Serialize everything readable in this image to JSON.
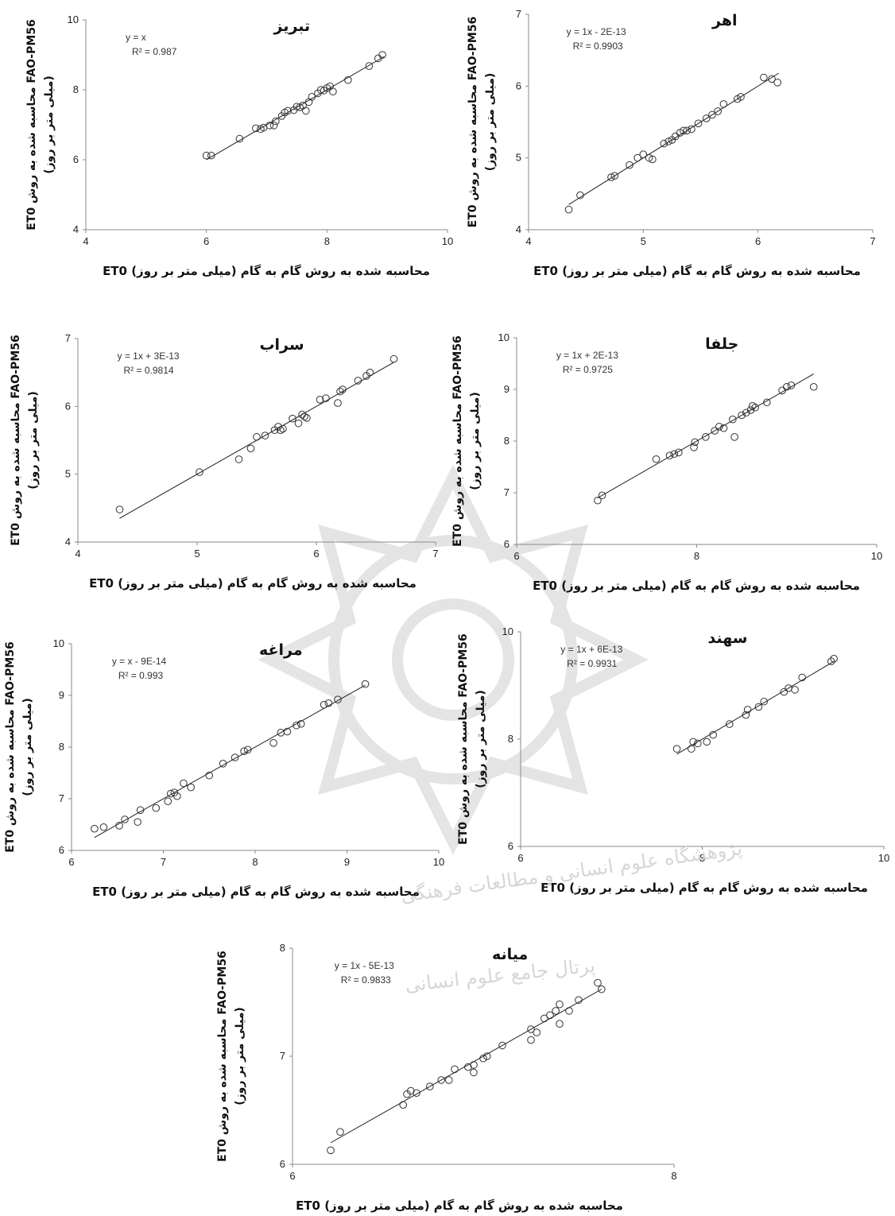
{
  "common": {
    "xlabel": "ET0 محاسبه شده به روش گام به گام (میلی متر بر روز)",
    "ylabel_line1": "ET0 محاسبه شده به روش FAO-PM56",
    "ylabel_line2": "(میلی متر بر روز)"
  },
  "watermark": {
    "arc_text": "پژوهشگاه علوم انسانی و مطالعات فرهنگی",
    "arc_text2": "پرتال جامع علوم انسانی"
  },
  "chart_data": [
    {
      "type": "scatter",
      "title": "تبریز",
      "equation": "y = x",
      "r2": "R² = 0.987",
      "xlim": [
        4,
        10
      ],
      "ylim": [
        4,
        10
      ],
      "xticks": [
        "4",
        "6",
        "8",
        "10"
      ],
      "yticks": [
        "4",
        "6",
        "8",
        "10"
      ],
      "trend": {
        "slope": 1,
        "intercept": 0,
        "x": [
          6.0,
          8.95
        ]
      },
      "points": [
        [
          6.0,
          6.12
        ],
        [
          6.08,
          6.12
        ],
        [
          6.55,
          6.6
        ],
        [
          6.82,
          6.9
        ],
        [
          6.9,
          6.88
        ],
        [
          6.95,
          6.92
        ],
        [
          7.05,
          6.98
        ],
        [
          7.12,
          6.98
        ],
        [
          7.15,
          7.1
        ],
        [
          7.25,
          7.25
        ],
        [
          7.3,
          7.35
        ],
        [
          7.35,
          7.4
        ],
        [
          7.45,
          7.42
        ],
        [
          7.5,
          7.52
        ],
        [
          7.55,
          7.5
        ],
        [
          7.6,
          7.55
        ],
        [
          7.65,
          7.4
        ],
        [
          7.7,
          7.65
        ],
        [
          7.75,
          7.8
        ],
        [
          7.85,
          7.9
        ],
        [
          7.9,
          8.0
        ],
        [
          7.95,
          7.98
        ],
        [
          8.0,
          8.05
        ],
        [
          8.05,
          8.1
        ],
        [
          8.1,
          7.95
        ],
        [
          8.35,
          8.28
        ],
        [
          8.7,
          8.68
        ],
        [
          8.85,
          8.9
        ],
        [
          8.92,
          9.0
        ]
      ]
    },
    {
      "type": "scatter",
      "title": "اهر",
      "equation": "y = 1x - 2E-13",
      "r2": "R² = 0.9903",
      "xlim": [
        4,
        7
      ],
      "ylim": [
        4,
        7
      ],
      "xticks": [
        "4",
        "5",
        "6",
        "7"
      ],
      "yticks": [
        "4",
        "5",
        "6",
        "7"
      ],
      "trend": {
        "slope": 1,
        "intercept": 0,
        "x": [
          4.35,
          6.18
        ]
      },
      "points": [
        [
          4.35,
          4.28
        ],
        [
          4.45,
          4.48
        ],
        [
          4.72,
          4.73
        ],
        [
          4.75,
          4.75
        ],
        [
          4.88,
          4.9
        ],
        [
          4.95,
          5.0
        ],
        [
          5.0,
          5.05
        ],
        [
          5.05,
          5.0
        ],
        [
          5.08,
          4.98
        ],
        [
          5.18,
          5.2
        ],
        [
          5.22,
          5.23
        ],
        [
          5.25,
          5.25
        ],
        [
          5.28,
          5.3
        ],
        [
          5.32,
          5.35
        ],
        [
          5.35,
          5.38
        ],
        [
          5.38,
          5.38
        ],
        [
          5.42,
          5.4
        ],
        [
          5.48,
          5.48
        ],
        [
          5.55,
          5.55
        ],
        [
          5.6,
          5.6
        ],
        [
          5.65,
          5.65
        ],
        [
          5.7,
          5.75
        ],
        [
          5.82,
          5.82
        ],
        [
          5.85,
          5.85
        ],
        [
          6.05,
          6.12
        ],
        [
          6.12,
          6.1
        ],
        [
          6.17,
          6.05
        ]
      ]
    },
    {
      "type": "scatter",
      "title": "سراب",
      "equation": "y = 1x + 3E-13",
      "r2": "R² = 0.9814",
      "xlim": [
        4,
        7
      ],
      "ylim": [
        4,
        7
      ],
      "xticks": [
        "4",
        "5",
        "6",
        "7"
      ],
      "yticks": [
        "4",
        "5",
        "6",
        "7"
      ],
      "trend": {
        "slope": 1,
        "intercept": 0,
        "x": [
          4.35,
          6.65
        ]
      },
      "points": [
        [
          4.35,
          4.48
        ],
        [
          5.02,
          5.03
        ],
        [
          5.35,
          5.22
        ],
        [
          5.45,
          5.38
        ],
        [
          5.5,
          5.55
        ],
        [
          5.57,
          5.57
        ],
        [
          5.65,
          5.65
        ],
        [
          5.68,
          5.7
        ],
        [
          5.7,
          5.65
        ],
        [
          5.72,
          5.67
        ],
        [
          5.8,
          5.82
        ],
        [
          5.85,
          5.75
        ],
        [
          5.88,
          5.88
        ],
        [
          5.9,
          5.85
        ],
        [
          5.92,
          5.83
        ],
        [
          6.03,
          6.1
        ],
        [
          6.08,
          6.12
        ],
        [
          6.18,
          6.05
        ],
        [
          6.2,
          6.22
        ],
        [
          6.22,
          6.25
        ],
        [
          6.35,
          6.38
        ],
        [
          6.42,
          6.45
        ],
        [
          6.45,
          6.5
        ],
        [
          6.65,
          6.7
        ]
      ]
    },
    {
      "type": "scatter",
      "title": "جلفا",
      "equation": "y = 1x + 2E-13",
      "r2": "R² = 0.9725",
      "xlim": [
        6,
        10
      ],
      "ylim": [
        6,
        10
      ],
      "xticks": [
        "6",
        "8",
        "10"
      ],
      "yticks": [
        "6",
        "7",
        "8",
        "9",
        "10"
      ],
      "trend": {
        "slope": 1,
        "intercept": 0,
        "x": [
          6.9,
          9.3
        ]
      },
      "points": [
        [
          6.9,
          6.85
        ],
        [
          6.95,
          6.95
        ],
        [
          7.55,
          7.65
        ],
        [
          7.7,
          7.72
        ],
        [
          7.75,
          7.75
        ],
        [
          7.8,
          7.78
        ],
        [
          7.97,
          7.88
        ],
        [
          7.98,
          7.98
        ],
        [
          8.1,
          8.08
        ],
        [
          8.2,
          8.2
        ],
        [
          8.25,
          8.28
        ],
        [
          8.3,
          8.25
        ],
        [
          8.4,
          8.42
        ],
        [
          8.42,
          8.08
        ],
        [
          8.5,
          8.5
        ],
        [
          8.55,
          8.55
        ],
        [
          8.6,
          8.6
        ],
        [
          8.62,
          8.68
        ],
        [
          8.65,
          8.65
        ],
        [
          8.78,
          8.75
        ],
        [
          8.95,
          8.98
        ],
        [
          9.0,
          9.05
        ],
        [
          9.05,
          9.08
        ],
        [
          9.3,
          9.05
        ]
      ]
    },
    {
      "type": "scatter",
      "title": "مراغه",
      "equation": "y = x - 9E-14",
      "r2": "R² = 0.993",
      "xlim": [
        6,
        10
      ],
      "ylim": [
        6,
        10
      ],
      "xticks": [
        "6",
        "7",
        "8",
        "9",
        "10"
      ],
      "yticks": [
        "6",
        "7",
        "8",
        "9",
        "10"
      ],
      "trend": {
        "slope": 1,
        "intercept": 0,
        "x": [
          6.25,
          9.2
        ]
      },
      "points": [
        [
          6.25,
          6.42
        ],
        [
          6.35,
          6.45
        ],
        [
          6.52,
          6.48
        ],
        [
          6.58,
          6.6
        ],
        [
          6.72,
          6.55
        ],
        [
          6.75,
          6.78
        ],
        [
          6.92,
          6.82
        ],
        [
          7.05,
          6.95
        ],
        [
          7.08,
          7.1
        ],
        [
          7.12,
          7.12
        ],
        [
          7.15,
          7.05
        ],
        [
          7.22,
          7.3
        ],
        [
          7.3,
          7.22
        ],
        [
          7.5,
          7.45
        ],
        [
          7.65,
          7.68
        ],
        [
          7.78,
          7.8
        ],
        [
          7.88,
          7.92
        ],
        [
          7.92,
          7.95
        ],
        [
          8.2,
          8.08
        ],
        [
          8.28,
          8.28
        ],
        [
          8.35,
          8.3
        ],
        [
          8.45,
          8.42
        ],
        [
          8.5,
          8.45
        ],
        [
          8.75,
          8.82
        ],
        [
          8.8,
          8.85
        ],
        [
          8.9,
          8.92
        ],
        [
          9.2,
          9.22
        ]
      ]
    },
    {
      "type": "scatter",
      "title": "سهند",
      "equation": "y = 1x + 6E-13",
      "r2": "R² = 0.9931",
      "xlim": [
        6,
        10
      ],
      "ylim": [
        6,
        10
      ],
      "xticks": [
        "6",
        "8",
        "10"
      ],
      "yticks": [
        "6",
        "8",
        "10"
      ],
      "trend": {
        "slope": 1,
        "intercept": 0,
        "x": [
          7.72,
          9.45
        ]
      },
      "points": [
        [
          7.72,
          7.82
        ],
        [
          7.88,
          7.82
        ],
        [
          7.9,
          7.95
        ],
        [
          7.95,
          7.92
        ],
        [
          8.05,
          7.95
        ],
        [
          8.12,
          8.08
        ],
        [
          8.3,
          8.28
        ],
        [
          8.48,
          8.45
        ],
        [
          8.5,
          8.55
        ],
        [
          8.62,
          8.6
        ],
        [
          8.68,
          8.7
        ],
        [
          8.9,
          8.88
        ],
        [
          8.95,
          8.95
        ],
        [
          9.02,
          8.92
        ],
        [
          9.1,
          9.15
        ],
        [
          9.42,
          9.45
        ],
        [
          9.45,
          9.5
        ]
      ]
    },
    {
      "type": "scatter",
      "title": "میانه",
      "equation": "y = 1x - 5E-13",
      "r2": "R² = 0.9833",
      "xlim": [
        6,
        8
      ],
      "ylim": [
        6,
        8
      ],
      "xticks": [
        "6",
        "8"
      ],
      "yticks": [
        "6",
        "7",
        "8"
      ],
      "trend": {
        "slope": 1,
        "intercept": 0,
        "x": [
          6.2,
          7.62
        ]
      },
      "points": [
        [
          6.2,
          6.13
        ],
        [
          6.25,
          6.3
        ],
        [
          6.58,
          6.55
        ],
        [
          6.6,
          6.65
        ],
        [
          6.62,
          6.68
        ],
        [
          6.65,
          6.66
        ],
        [
          6.72,
          6.72
        ],
        [
          6.78,
          6.78
        ],
        [
          6.82,
          6.78
        ],
        [
          6.85,
          6.88
        ],
        [
          6.92,
          6.9
        ],
        [
          6.95,
          6.92
        ],
        [
          6.95,
          6.85
        ],
        [
          7.0,
          6.98
        ],
        [
          7.02,
          7.0
        ],
        [
          7.1,
          7.1
        ],
        [
          7.25,
          7.25
        ],
        [
          7.25,
          7.15
        ],
        [
          7.28,
          7.22
        ],
        [
          7.32,
          7.35
        ],
        [
          7.35,
          7.38
        ],
        [
          7.38,
          7.42
        ],
        [
          7.4,
          7.48
        ],
        [
          7.4,
          7.3
        ],
        [
          7.45,
          7.42
        ],
        [
          7.5,
          7.52
        ],
        [
          7.6,
          7.68
        ],
        [
          7.62,
          7.62
        ]
      ]
    }
  ]
}
